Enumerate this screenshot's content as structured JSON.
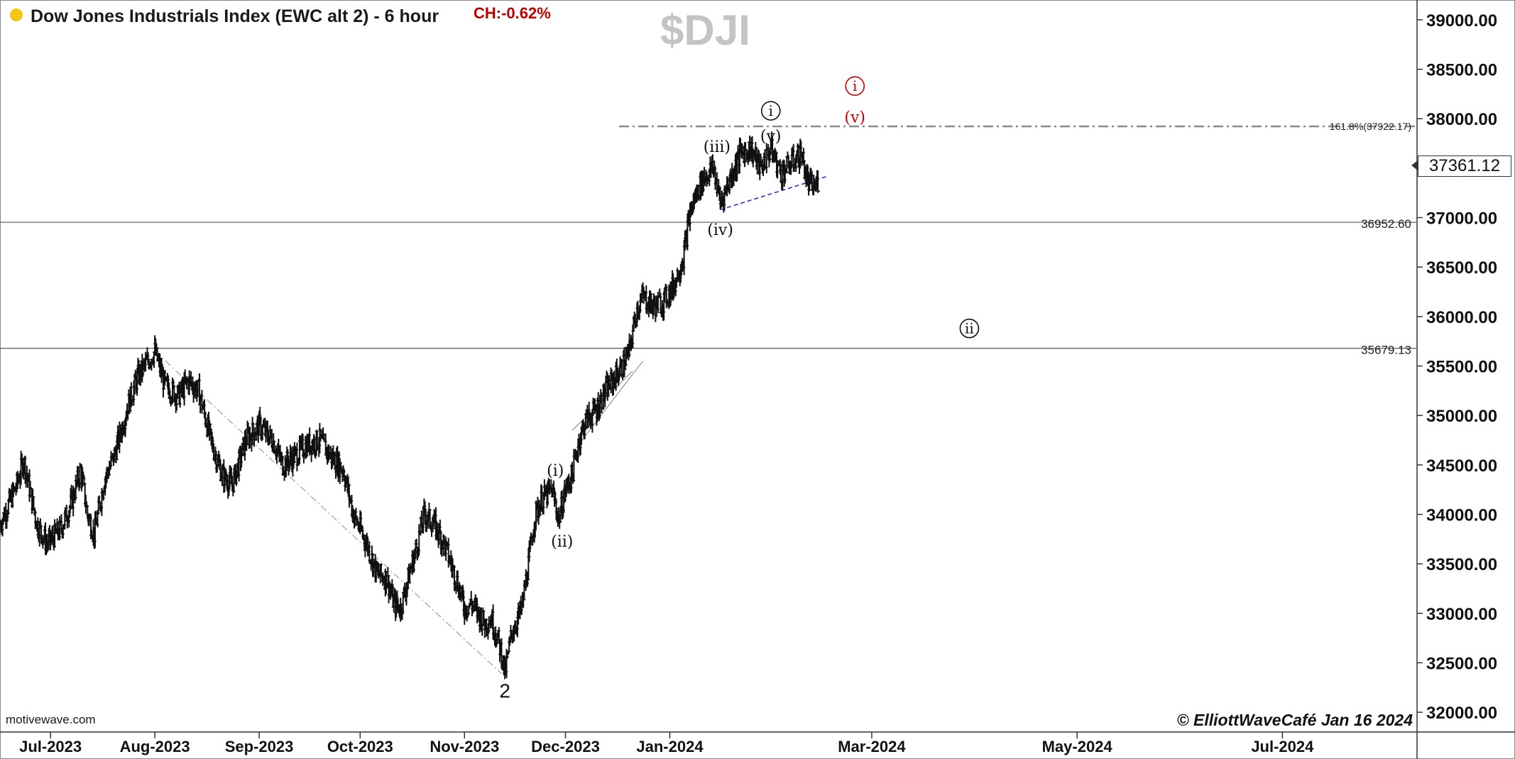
{
  "header": {
    "title": "Dow Jones Industrials Index (EWC alt 2) - 6 hour",
    "change_label": "CH:-0.62%",
    "symbol_watermark": "$DJI",
    "status_dot_color": "#f5c518"
  },
  "footer": {
    "brand": "motivewave.com",
    "copyright": "© ElliottWaveCafé Jan 16 2024"
  },
  "last_price_label": "37361.12",
  "chart_data": {
    "type": "ohlc",
    "title": "Dow Jones Industrials Index (EWC alt 2) - 6 hour",
    "ylim": [
      31800,
      39200
    ],
    "y_ticks": [
      32000,
      32500,
      33000,
      33500,
      34000,
      34500,
      35000,
      35500,
      36000,
      36500,
      37000,
      37500,
      38000,
      38500,
      39000
    ],
    "y_tick_labels": [
      "32000.00",
      "32500.00",
      "33000.00",
      "33500.00",
      "34000.00",
      "34500.00",
      "35000.00",
      "35500.00",
      "36000.00",
      "36500.00",
      "37000.00",
      "37500.00",
      "38000.00",
      "38500.00",
      "39000.00"
    ],
    "x_range": [
      "2023-06-16",
      "2024-08-10"
    ],
    "x_ticks": [
      "2023-07-01",
      "2023-08-01",
      "2023-09-01",
      "2023-10-01",
      "2023-11-01",
      "2023-12-01",
      "2024-01-01",
      "2024-03-01",
      "2024-05-01",
      "2024-07-01"
    ],
    "x_tick_labels": [
      "Jul-2023",
      "Aug-2023",
      "Sep-2023",
      "Oct-2023",
      "Nov-2023",
      "Dec-2023",
      "Jan-2024",
      "Mar-2024",
      "May-2024",
      "Jul-2024"
    ],
    "price_path": [
      [
        "2023-06-16",
        33900
      ],
      [
        "2023-06-21",
        34300
      ],
      [
        "2023-06-23",
        34550
      ],
      [
        "2023-06-27",
        33900
      ],
      [
        "2023-06-30",
        33700
      ],
      [
        "2023-07-04",
        33850
      ],
      [
        "2023-07-07",
        34100
      ],
      [
        "2023-07-10",
        34450
      ],
      [
        "2023-07-12",
        34000
      ],
      [
        "2023-07-14",
        33800
      ],
      [
        "2023-07-17",
        34350
      ],
      [
        "2023-07-20",
        34600
      ],
      [
        "2023-07-24",
        35100
      ],
      [
        "2023-07-27",
        35400
      ],
      [
        "2023-07-31",
        35600
      ],
      [
        "2023-08-01",
        35650
      ],
      [
        "2023-08-04",
        35300
      ],
      [
        "2023-08-08",
        35200
      ],
      [
        "2023-08-11",
        35350
      ],
      [
        "2023-08-14",
        35250
      ],
      [
        "2023-08-18",
        34700
      ],
      [
        "2023-08-21",
        34400
      ],
      [
        "2023-08-24",
        34300
      ],
      [
        "2023-08-28",
        34750
      ],
      [
        "2023-09-01",
        34900
      ],
      [
        "2023-09-05",
        34750
      ],
      [
        "2023-09-08",
        34500
      ],
      [
        "2023-09-12",
        34600
      ],
      [
        "2023-09-15",
        34700
      ],
      [
        "2023-09-19",
        34750
      ],
      [
        "2023-09-22",
        34600
      ],
      [
        "2023-09-26",
        34450
      ],
      [
        "2023-09-29",
        34000
      ],
      [
        "2023-10-03",
        33700
      ],
      [
        "2023-10-06",
        33400
      ],
      [
        "2023-10-09",
        33350
      ],
      [
        "2023-10-11",
        33100
      ],
      [
        "2023-10-13",
        33050
      ],
      [
        "2023-10-16",
        33450
      ],
      [
        "2023-10-18",
        33700
      ],
      [
        "2023-10-20",
        34000
      ],
      [
        "2023-10-23",
        33900
      ],
      [
        "2023-10-26",
        33700
      ],
      [
        "2023-10-30",
        33300
      ],
      [
        "2023-11-01",
        33050
      ],
      [
        "2023-11-03",
        33100
      ],
      [
        "2023-11-07",
        32900
      ],
      [
        "2023-11-09",
        32950
      ],
      [
        "2023-11-12",
        32600
      ],
      [
        "2023-11-13",
        32390
      ],
      [
        "2023-11-15",
        32800
      ],
      [
        "2023-11-18",
        33050
      ],
      [
        "2023-11-20",
        33500
      ],
      [
        "2023-11-22",
        34000
      ],
      [
        "2023-11-24",
        34150
      ],
      [
        "2023-11-27",
        34250
      ],
      [
        "2023-11-29",
        33950
      ],
      [
        "2023-12-01",
        34250
      ],
      [
        "2023-12-03",
        34400
      ],
      [
        "2023-12-05",
        34750
      ],
      [
        "2023-12-07",
        34950
      ],
      [
        "2023-12-10",
        35050
      ],
      [
        "2023-12-13",
        35250
      ],
      [
        "2023-12-16",
        35400
      ],
      [
        "2023-12-18",
        35500
      ],
      [
        "2023-12-20",
        35650
      ],
      [
        "2023-12-22",
        36050
      ],
      [
        "2023-12-24",
        36200
      ],
      [
        "2023-12-27",
        36100
      ],
      [
        "2023-12-30",
        36150
      ],
      [
        "2024-01-02",
        36300
      ],
      [
        "2024-01-05",
        36600
      ],
      [
        "2024-01-07",
        37050
      ],
      [
        "2024-01-09",
        37250
      ],
      [
        "2024-01-11",
        37400
      ],
      [
        "2024-01-14",
        37500
      ],
      [
        "2024-01-16",
        37150
      ],
      [
        "2024-01-19",
        37400
      ],
      [
        "2024-01-22",
        37650
      ],
      [
        "2024-01-25",
        37700
      ],
      [
        "2024-01-28",
        37500
      ],
      [
        "2024-01-31",
        37700
      ],
      [
        "2024-02-03",
        37450
      ],
      [
        "2024-02-06",
        37550
      ],
      [
        "2024-02-09",
        37650
      ],
      [
        "2024-02-11",
        37350
      ],
      [
        "2024-02-13",
        37300
      ],
      [
        "2024-02-14",
        37361
      ]
    ],
    "horizontal_levels": [
      {
        "label": "161.8%(37922.17)",
        "value": 37922.17,
        "style": "dash-dot"
      },
      {
        "label": "36952.60",
        "value": 36952.6,
        "style": "solid"
      },
      {
        "label": "35679.13",
        "value": 35679.13,
        "style": "solid"
      }
    ],
    "wave_labels": [
      {
        "text": "2",
        "x": "2023-11-13",
        "y": 32220,
        "style": "plain"
      },
      {
        "text": "(i)",
        "x": "2023-11-28",
        "y": 34450,
        "style": "paren"
      },
      {
        "text": "(ii)",
        "x": "2023-11-30",
        "y": 33730,
        "style": "paren"
      },
      {
        "text": "(iii)",
        "x": "2024-01-15",
        "y": 37720,
        "style": "paren"
      },
      {
        "text": "(iv)",
        "x": "2024-01-16",
        "y": 36880,
        "style": "paren"
      },
      {
        "text": "(v)",
        "x": "2024-01-31",
        "y": 37830,
        "style": "paren"
      },
      {
        "text": "i",
        "x": "2024-01-31",
        "y": 38080,
        "style": "circle"
      },
      {
        "text": "(v)",
        "x": "2024-02-25",
        "y": 38020,
        "style": "paren-red"
      },
      {
        "text": "i",
        "x": "2024-02-25",
        "y": 38330,
        "style": "circle-red"
      },
      {
        "text": "ii",
        "x": "2024-03-30",
        "y": 35880,
        "style": "circle"
      }
    ],
    "trend_lines": [
      {
        "x1": "2023-08-01",
        "y1": 35650,
        "x2": "2023-11-12",
        "y2": 32390,
        "style": "dash-dot"
      },
      {
        "x1": "2024-01-16",
        "y1": 37080,
        "x2": "2024-02-17",
        "y2": 37420,
        "style": "dashed-blue"
      },
      {
        "x1": "2023-12-03",
        "y1": 34850,
        "x2": "2023-12-21",
        "y2": 35450,
        "style": "thin"
      },
      {
        "x1": "2023-12-07",
        "y1": 34800,
        "x2": "2023-12-24",
        "y2": 35550,
        "style": "thin"
      }
    ],
    "colors": {
      "bars": "#111111",
      "level_lines": "#777777",
      "dashed_trend": "#2233cc",
      "red_labels": "#cc0000"
    }
  }
}
